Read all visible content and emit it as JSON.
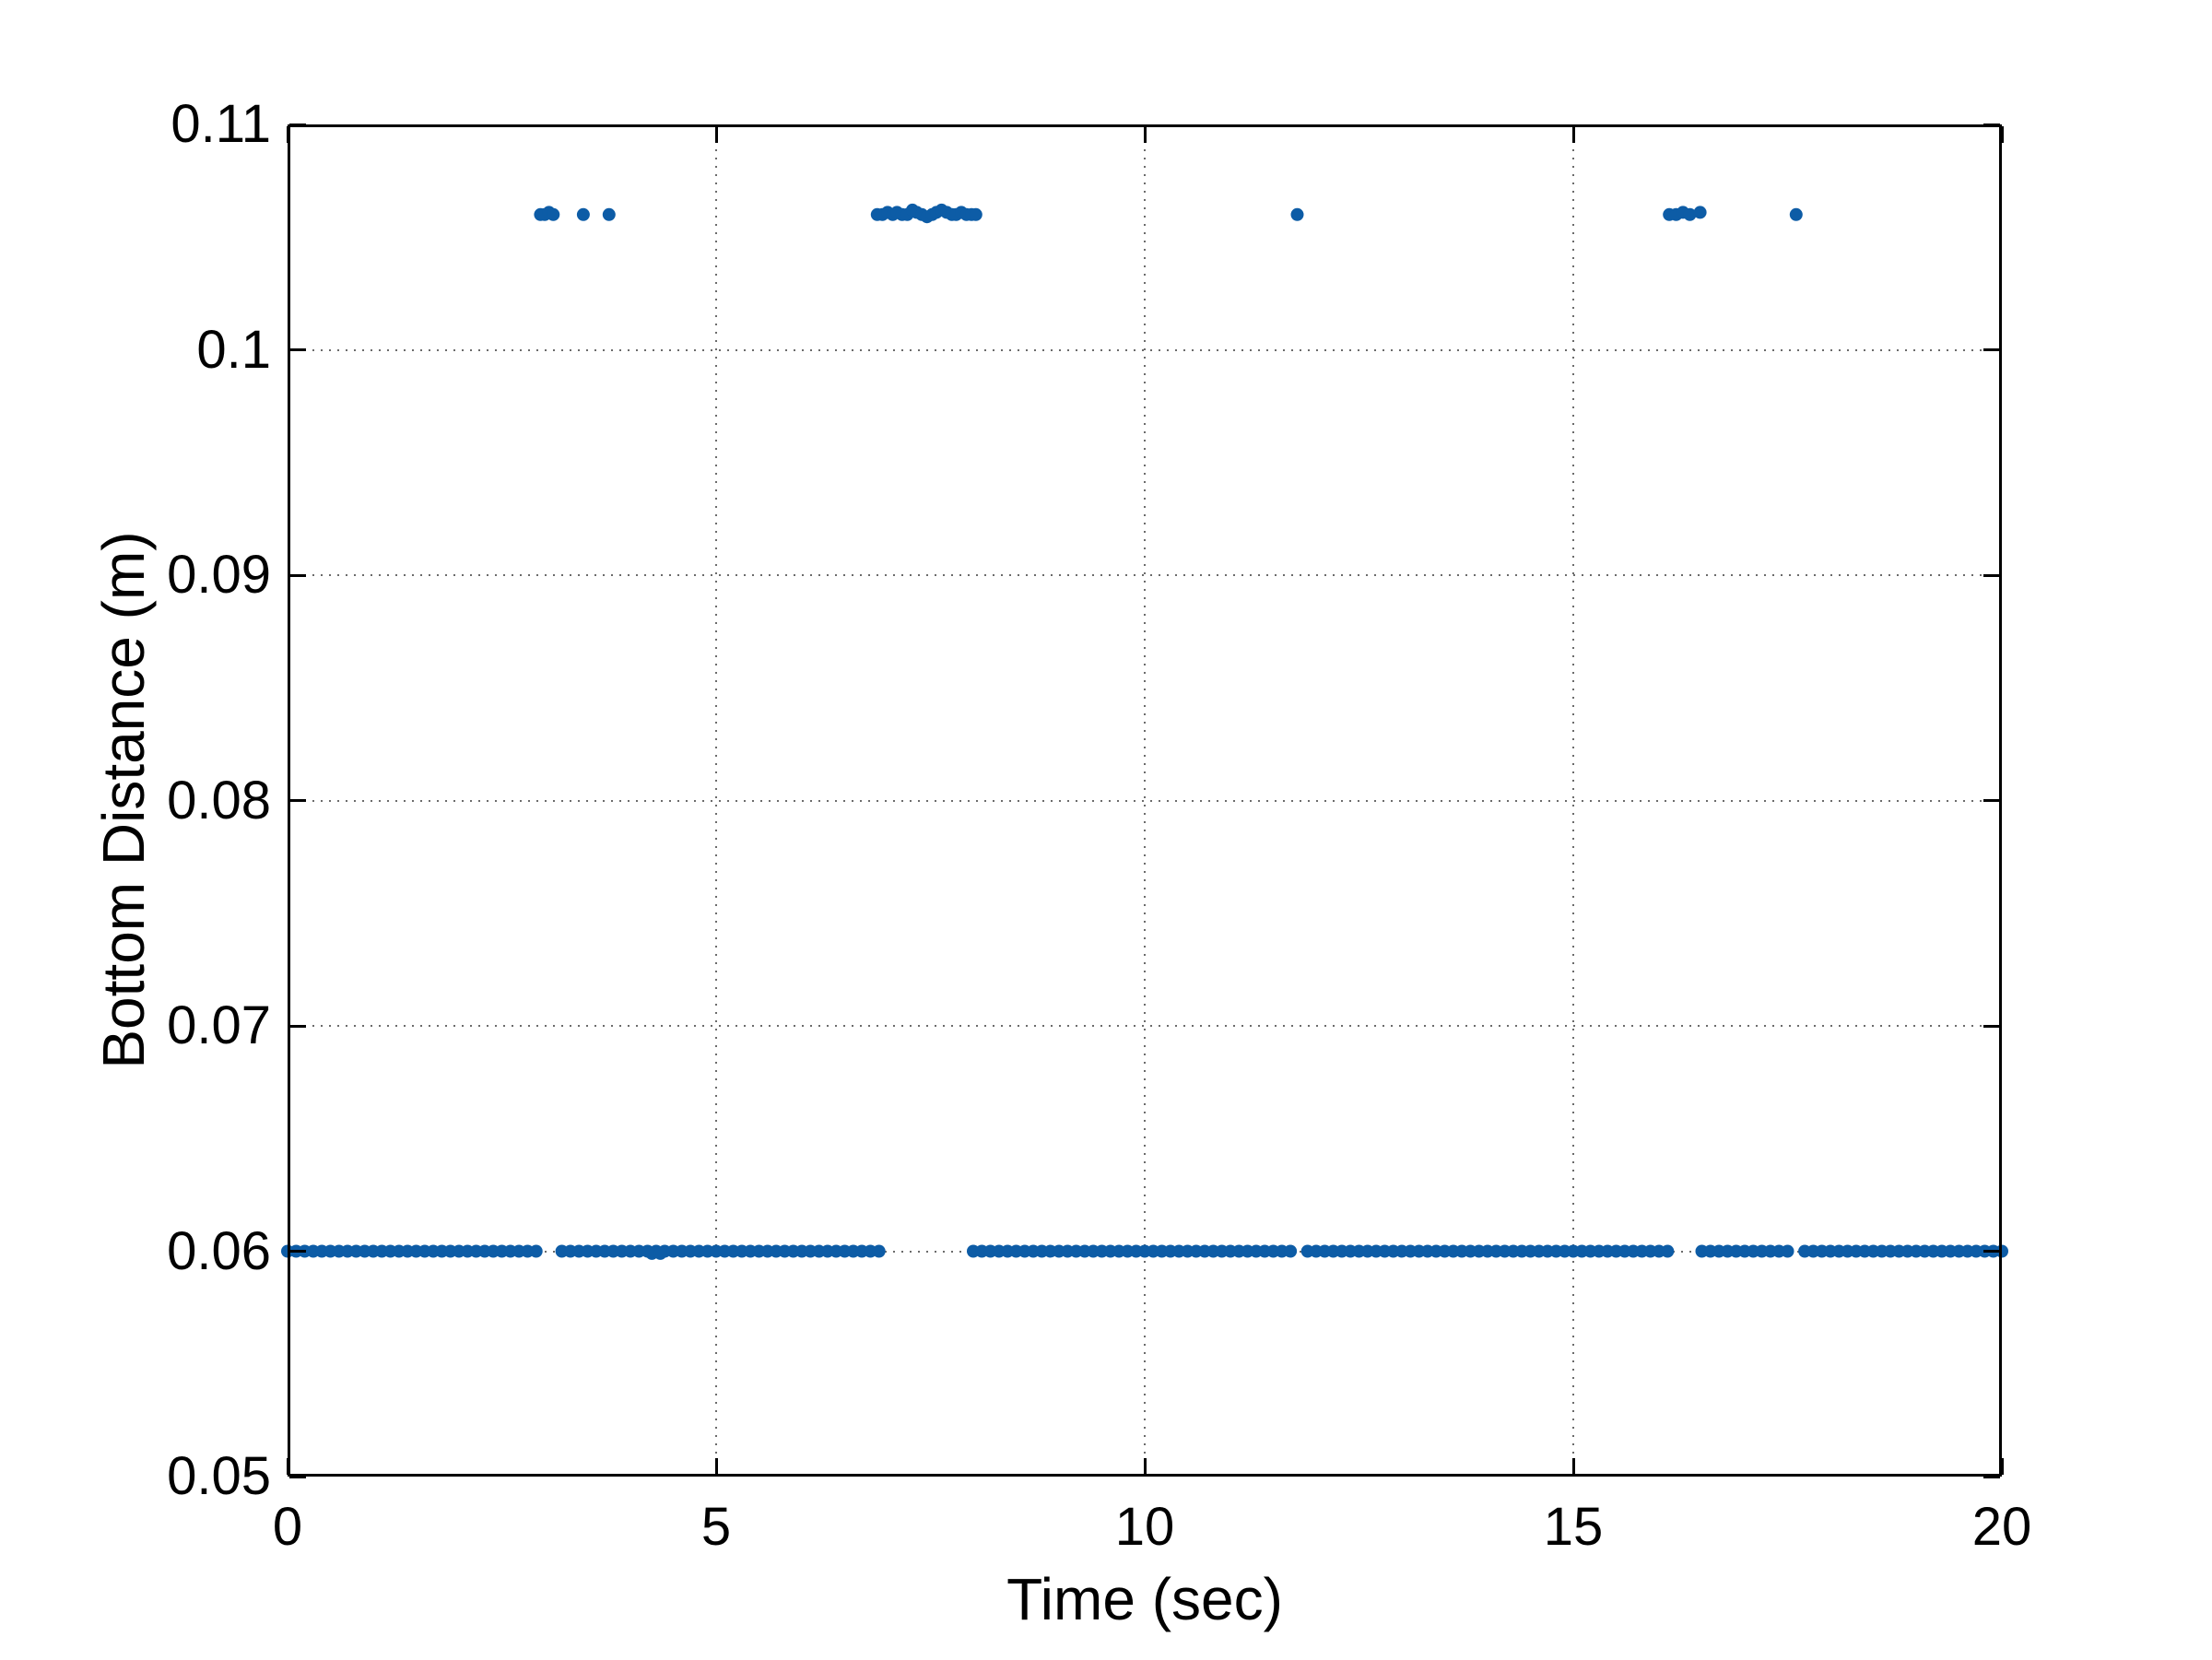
{
  "figure": {
    "background_color": "#ffffff",
    "axes_color": "#000000",
    "grid_color": "#6b6b6b"
  },
  "chart_data": {
    "type": "scatter",
    "title": "",
    "xlabel": "Time (sec)",
    "ylabel": "Bottom Distance (m)",
    "xlim": [
      0,
      20
    ],
    "ylim": [
      0.05,
      0.11
    ],
    "xticks": [
      0,
      5,
      10,
      15,
      20
    ],
    "xtick_labels": [
      "0",
      "5",
      "10",
      "15",
      "20"
    ],
    "yticks": [
      0.05,
      0.06,
      0.07,
      0.08,
      0.09,
      0.1,
      0.11
    ],
    "ytick_labels": [
      "0.05",
      "0.06",
      "0.07",
      "0.08",
      "0.09",
      "0.1",
      "0.11"
    ],
    "grid": true,
    "legend": null,
    "marker": "filled-circle",
    "marker_color": "#0d5ca6",
    "series": [
      {
        "name": "bottom-distance",
        "bottom_value": 0.06,
        "sample_step": 0.1,
        "bottom_segments": [
          [
            0.0,
            2.9
          ],
          [
            3.2,
            3.4
          ],
          [
            3.5,
            3.7
          ],
          [
            3.8,
            6.9
          ],
          [
            8.0,
            11.7
          ],
          [
            11.9,
            16.1
          ],
          [
            16.5,
            17.5
          ],
          [
            17.7,
            20.0
          ]
        ],
        "dip_points": [
          [
            4.25,
            0.0599
          ],
          [
            4.35,
            0.0599
          ]
        ],
        "outlier_points": [
          [
            2.95,
            0.106
          ],
          [
            3.0,
            0.106
          ],
          [
            3.05,
            0.1061
          ],
          [
            3.1,
            0.106
          ],
          [
            3.45,
            0.106
          ],
          [
            3.75,
            0.106
          ],
          [
            6.88,
            0.106
          ],
          [
            6.94,
            0.106
          ],
          [
            7.0,
            0.1061
          ],
          [
            7.06,
            0.106
          ],
          [
            7.11,
            0.1061
          ],
          [
            7.17,
            0.106
          ],
          [
            7.23,
            0.106
          ],
          [
            7.29,
            0.1062
          ],
          [
            7.34,
            0.1061
          ],
          [
            7.4,
            0.106
          ],
          [
            7.46,
            0.1059
          ],
          [
            7.52,
            0.106
          ],
          [
            7.57,
            0.1061
          ],
          [
            7.63,
            0.1062
          ],
          [
            7.69,
            0.1061
          ],
          [
            7.75,
            0.106
          ],
          [
            7.8,
            0.106
          ],
          [
            7.86,
            0.1061
          ],
          [
            7.92,
            0.106
          ],
          [
            7.98,
            0.106
          ],
          [
            8.03,
            0.106
          ],
          [
            11.78,
            0.106
          ],
          [
            16.12,
            0.106
          ],
          [
            16.2,
            0.106
          ],
          [
            16.28,
            0.1061
          ],
          [
            16.36,
            0.106
          ],
          [
            16.48,
            0.1061
          ],
          [
            17.6,
            0.106
          ]
        ]
      }
    ]
  }
}
